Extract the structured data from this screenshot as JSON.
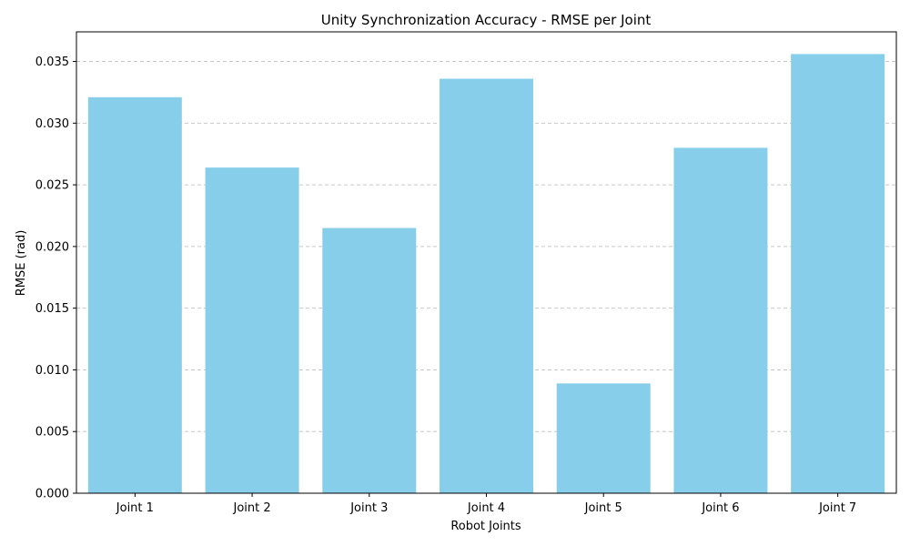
{
  "chart_data": {
    "type": "bar",
    "title": "Unity Synchronization Accuracy - RMSE per Joint",
    "xlabel": "Robot Joints",
    "ylabel": "RMSE (rad)",
    "categories": [
      "Joint 1",
      "Joint 2",
      "Joint 3",
      "Joint 4",
      "Joint 5",
      "Joint 6",
      "Joint 7"
    ],
    "values": [
      0.0321,
      0.0264,
      0.0215,
      0.0336,
      0.0089,
      0.028,
      0.0356
    ],
    "ylim": [
      0,
      0.0374
    ],
    "yticks": [
      "0.000",
      "0.005",
      "0.010",
      "0.015",
      "0.020",
      "0.025",
      "0.030",
      "0.035"
    ],
    "grid": "y-axis dashed",
    "legend": "none",
    "colors": {
      "bar": "#87CEEB",
      "grid": "#c8c8c8",
      "axis": "#000000"
    }
  }
}
